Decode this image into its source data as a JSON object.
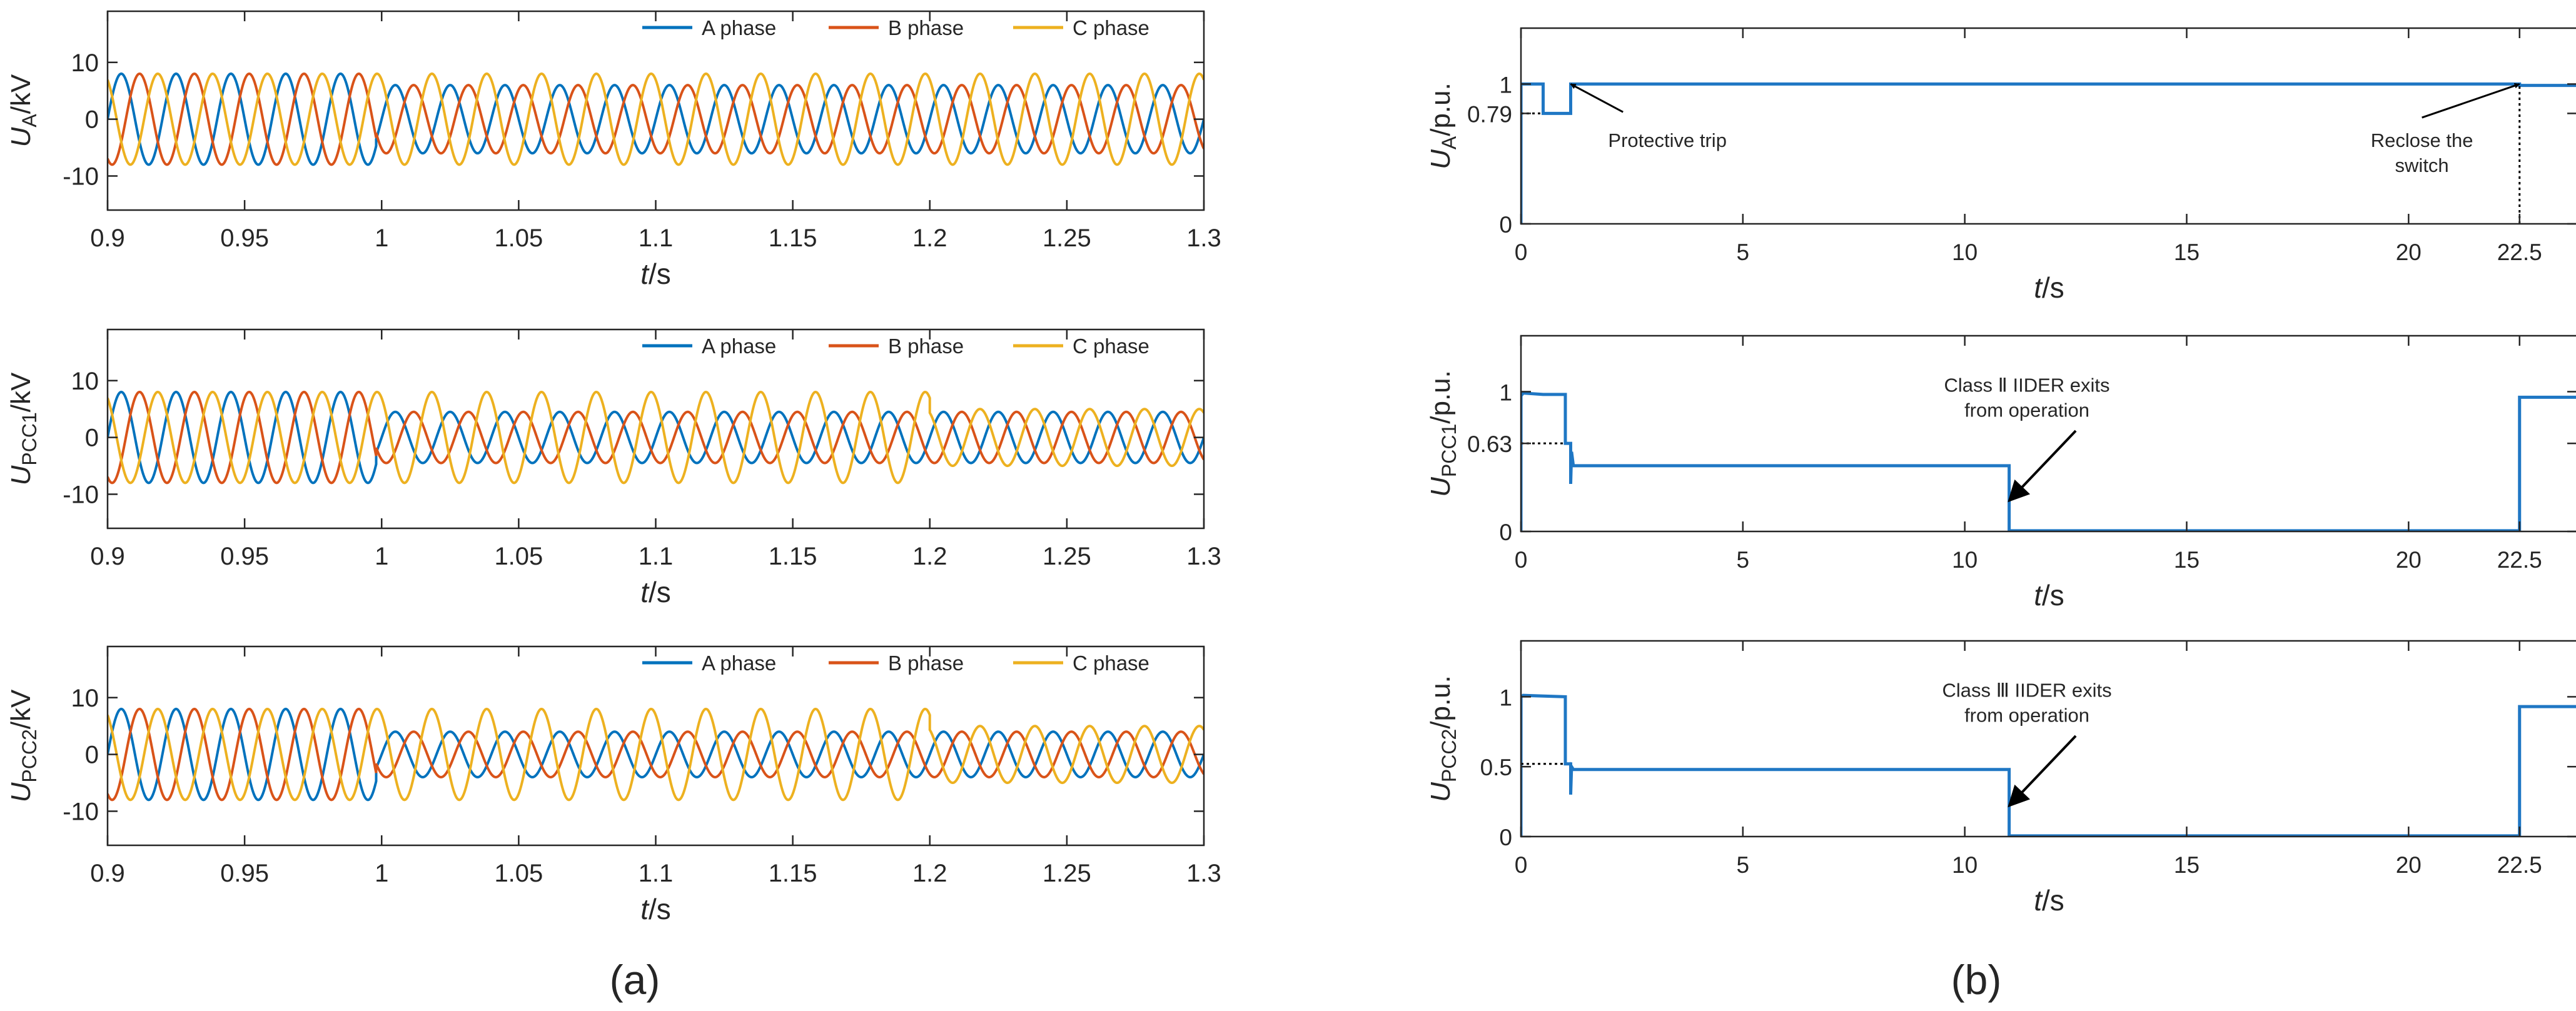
{
  "colors": {
    "A": "#0072BD",
    "B": "#D95319",
    "C": "#EDB120",
    "step": "#1f77c4",
    "axis": "#262626"
  },
  "panel_labels": {
    "a": "(a)",
    "b": "(b)"
  },
  "chart_data": [
    {
      "id": "a1",
      "type": "line",
      "group": "a",
      "ylabel": {
        "main": "U",
        "sub": "A",
        "unit": "/kV"
      },
      "xlabel": {
        "var": "t",
        "unit": "/s"
      },
      "xlim": [
        0.9,
        1.3
      ],
      "ylim": [
        -16,
        19
      ],
      "xticks": [
        0.9,
        0.95,
        1,
        1.05,
        1.1,
        1.15,
        1.2,
        1.25,
        1.3
      ],
      "xtick_labels": [
        "0.9",
        "0.95",
        "1",
        "1.05",
        "1.1",
        "1.15",
        "1.2",
        "1.25",
        "1.3"
      ],
      "yticks": [
        -10,
        0,
        10
      ],
      "ytick_labels": [
        "-10",
        "0",
        "10"
      ],
      "legend": [
        "A phase",
        "B phase",
        "C phase"
      ],
      "frequency_hz": 50,
      "segments": [
        {
          "t": [
            0.9,
            0.998
          ],
          "amp": [
            8,
            8,
            8
          ]
        },
        {
          "t": [
            0.998,
            1.3
          ],
          "amp": [
            6,
            6,
            8
          ]
        }
      ]
    },
    {
      "id": "a2",
      "type": "line",
      "group": "a",
      "ylabel": {
        "main": "U",
        "sub": "PCC1",
        "unit": "/kV"
      },
      "xlabel": {
        "var": "t",
        "unit": "/s"
      },
      "xlim": [
        0.9,
        1.3
      ],
      "ylim": [
        -16,
        19
      ],
      "xticks": [
        0.9,
        0.95,
        1,
        1.05,
        1.1,
        1.15,
        1.2,
        1.25,
        1.3
      ],
      "xtick_labels": [
        "0.9",
        "0.95",
        "1",
        "1.05",
        "1.1",
        "1.15",
        "1.2",
        "1.25",
        "1.3"
      ],
      "yticks": [
        -10,
        0,
        10
      ],
      "ytick_labels": [
        "-10",
        "0",
        "10"
      ],
      "legend": [
        "A phase",
        "B phase",
        "C phase"
      ],
      "frequency_hz": 50,
      "segments": [
        {
          "t": [
            0.9,
            0.998
          ],
          "amp": [
            8,
            8,
            8
          ]
        },
        {
          "t": [
            0.998,
            1.2
          ],
          "amp": [
            4.5,
            4.5,
            8
          ]
        },
        {
          "t": [
            1.2,
            1.3
          ],
          "amp": [
            4.5,
            4.5,
            5
          ]
        }
      ]
    },
    {
      "id": "a3",
      "type": "line",
      "group": "a",
      "ylabel": {
        "main": "U",
        "sub": "PCC2",
        "unit": "/kV"
      },
      "xlabel": {
        "var": "t",
        "unit": "/s"
      },
      "xlim": [
        0.9,
        1.3
      ],
      "ylim": [
        -16,
        19
      ],
      "xticks": [
        0.9,
        0.95,
        1,
        1.05,
        1.1,
        1.15,
        1.2,
        1.25,
        1.3
      ],
      "xtick_labels": [
        "0.9",
        "0.95",
        "1",
        "1.05",
        "1.1",
        "1.15",
        "1.2",
        "1.25",
        "1.3"
      ],
      "yticks": [
        -10,
        0,
        10
      ],
      "ytick_labels": [
        "-10",
        "0",
        "10"
      ],
      "legend": [
        "A phase",
        "B phase",
        "C phase"
      ],
      "frequency_hz": 50,
      "segments": [
        {
          "t": [
            0.9,
            0.998
          ],
          "amp": [
            8,
            8,
            8
          ]
        },
        {
          "t": [
            0.998,
            1.2
          ],
          "amp": [
            4,
            4,
            8
          ]
        },
        {
          "t": [
            1.2,
            1.3
          ],
          "amp": [
            4,
            4,
            5
          ]
        }
      ]
    },
    {
      "id": "b1",
      "type": "line",
      "group": "b",
      "ylabel": {
        "main": "U",
        "sub": "A",
        "unit": "/p.u."
      },
      "xlabel": {
        "var": "t",
        "unit": "/s"
      },
      "xlim": [
        0,
        23.8
      ],
      "ylim": [
        0,
        1.4
      ],
      "xticks": [
        0,
        5,
        10,
        15,
        20,
        22.5
      ],
      "xtick_labels": [
        "0",
        "5",
        "10",
        "15",
        "20",
        "22.5"
      ],
      "yticks": [
        0,
        0.79,
        1
      ],
      "ytick_labels": [
        "0",
        "0.79",
        "1"
      ],
      "points": [
        [
          0,
          0
        ],
        [
          0.001,
          1
        ],
        [
          0.5,
          1
        ],
        [
          0.5,
          0.79
        ],
        [
          1.12,
          0.79
        ],
        [
          1.12,
          1
        ],
        [
          22.5,
          1
        ],
        [
          22.5,
          0.99
        ],
        [
          23.8,
          0.99
        ]
      ],
      "ref_h": {
        "y": 0.79,
        "x": [
          0,
          0.5
        ]
      },
      "ref_v": {
        "x": 22.5,
        "y": [
          0,
          1
        ]
      },
      "annotations": [
        {
          "lines": [
            "Protective trip"
          ],
          "target": [
            1.12,
            1
          ],
          "text_at": [
            3.3,
            0.55
          ],
          "tail": [
            2.3,
            0.8
          ]
        },
        {
          "lines": [
            "Reclose the",
            "switch"
          ],
          "target": [
            22.5,
            1
          ],
          "text_at": [
            20.3,
            0.55
          ],
          "tail": [
            20.3,
            0.76
          ]
        }
      ]
    },
    {
      "id": "b2",
      "type": "line",
      "group": "b",
      "ylabel": {
        "main": "U",
        "sub": "PCC1",
        "unit": "/p.u."
      },
      "xlabel": {
        "var": "t",
        "unit": "/s"
      },
      "xlim": [
        0,
        23.8
      ],
      "ylim": [
        0,
        1.4
      ],
      "xticks": [
        0,
        5,
        10,
        15,
        20,
        22.5
      ],
      "xtick_labels": [
        "0",
        "5",
        "10",
        "15",
        "20",
        "22.5"
      ],
      "yticks": [
        0,
        0.63,
        1
      ],
      "ytick_labels": [
        "0",
        "0.63",
        "1"
      ],
      "points": [
        [
          0,
          0
        ],
        [
          0.001,
          0.97
        ],
        [
          0.05,
          0.99
        ],
        [
          0.5,
          0.98
        ],
        [
          1.0,
          0.98
        ],
        [
          1.0,
          0.63
        ],
        [
          1.12,
          0.63
        ],
        [
          1.12,
          0.34
        ],
        [
          1.14,
          0.57
        ],
        [
          1.18,
          0.47
        ],
        [
          11.0,
          0.47
        ],
        [
          11.0,
          0.005
        ],
        [
          22.5,
          0.005
        ],
        [
          22.5,
          0.96
        ],
        [
          23.8,
          0.96
        ]
      ],
      "ref_h": {
        "y": 0.63,
        "x": [
          0,
          1.0
        ]
      },
      "annotations": [
        {
          "lines": [
            "Class Ⅱ IIDER exits",
            "from operation"
          ],
          "target": [
            11.0,
            0.22
          ],
          "text_at": [
            11.4,
            1.0
          ],
          "tail": [
            12.5,
            0.72
          ]
        }
      ]
    },
    {
      "id": "b3",
      "type": "line",
      "group": "b",
      "ylabel": {
        "main": "U",
        "sub": "PCC2",
        "unit": "/p.u."
      },
      "xlabel": {
        "var": "t",
        "unit": "/s"
      },
      "xlim": [
        0,
        23.8
      ],
      "ylim": [
        0,
        1.4
      ],
      "xticks": [
        0,
        5,
        10,
        15,
        20,
        22.5
      ],
      "xtick_labels": [
        "0",
        "5",
        "10",
        "15",
        "20",
        "22.5"
      ],
      "yticks": [
        0,
        0.5,
        1
      ],
      "ytick_labels": [
        "0",
        "0.5",
        "1"
      ],
      "points": [
        [
          0,
          0
        ],
        [
          0.001,
          1.0
        ],
        [
          0.05,
          1.01
        ],
        [
          1.0,
          1.0
        ],
        [
          1.0,
          0.52
        ],
        [
          1.12,
          0.52
        ],
        [
          1.12,
          0.3
        ],
        [
          1.14,
          0.5
        ],
        [
          1.18,
          0.48
        ],
        [
          11.0,
          0.48
        ],
        [
          11.0,
          0.005
        ],
        [
          22.5,
          0.005
        ],
        [
          22.5,
          0.93
        ],
        [
          23.8,
          0.93
        ]
      ],
      "ref_h": {
        "y": 0.52,
        "x": [
          0,
          1.0
        ]
      },
      "annotations": [
        {
          "lines": [
            "Class Ⅲ IIDER exits",
            "from operation"
          ],
          "target": [
            11.0,
            0.22
          ],
          "text_at": [
            11.4,
            1.0
          ],
          "tail": [
            12.5,
            0.72
          ]
        }
      ]
    }
  ]
}
